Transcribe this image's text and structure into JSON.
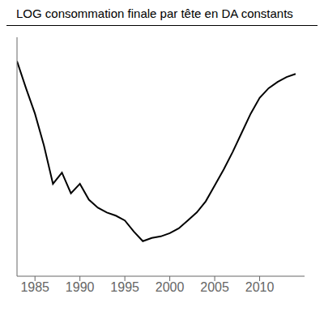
{
  "chart_data": {
    "type": "line",
    "title": "LOG consommation finale par tête en DA constants",
    "x": [
      1983,
      1984,
      1985,
      1986,
      1987,
      1988,
      1989,
      1990,
      1991,
      1992,
      1993,
      1994,
      1995,
      1996,
      1997,
      1998,
      1999,
      2000,
      2001,
      2002,
      2003,
      2004,
      2005,
      2006,
      2007,
      2008,
      2009,
      2010,
      2011,
      2012,
      2013,
      2014
    ],
    "values": [
      6.35,
      6.18,
      6.02,
      5.82,
      5.58,
      5.65,
      5.52,
      5.58,
      5.48,
      5.43,
      5.4,
      5.38,
      5.35,
      5.28,
      5.22,
      5.24,
      5.25,
      5.27,
      5.3,
      5.35,
      5.4,
      5.47,
      5.57,
      5.67,
      5.78,
      5.9,
      6.02,
      6.12,
      6.18,
      6.22,
      6.25,
      6.27
    ],
    "color": "#000000",
    "xlim": [
      1983,
      2015
    ],
    "xticks": [
      1985,
      1990,
      1995,
      2000,
      2005,
      2010
    ],
    "ylim": [
      5,
      6.5
    ],
    "yticks": [],
    "tick_labels": "x",
    "grid": false,
    "marker": "none",
    "line_style": "solid"
  }
}
